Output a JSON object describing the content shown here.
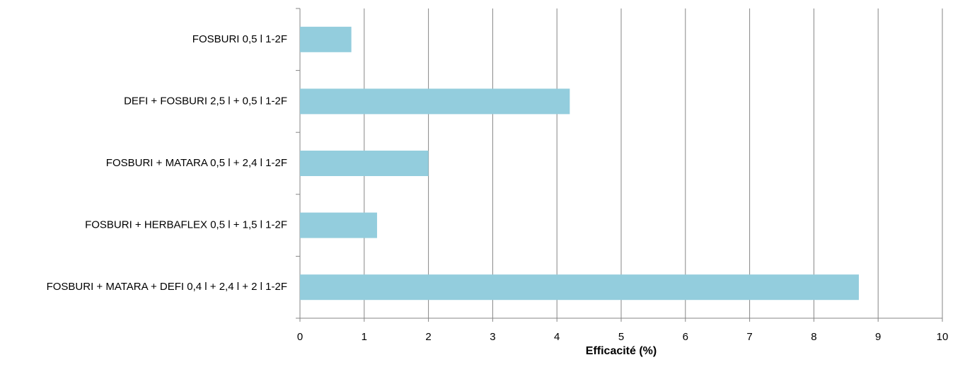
{
  "chart_data": {
    "type": "bar",
    "orientation": "horizontal",
    "x_label": "Efficacité (%)",
    "categories": [
      "FOSBURI 0,5 l 1-2F",
      "DEFI + FOSBURI 2,5 l + 0,5 l 1-2F",
      "FOSBURI + MATARA 0,5 l + 2,4 l 1-2F",
      "FOSBURI + HERBAFLEX 0,5 l + 1,5 l 1-2F",
      "FOSBURI + MATARA + DEFI 0,4 l + 2,4 l + 2 l 1-2F"
    ],
    "values": [
      0.8,
      4.2,
      2.0,
      1.2,
      8.7
    ],
    "color": "#93cddd",
    "xlim": [
      0,
      10
    ],
    "xticks": [
      0,
      1,
      2,
      3,
      4,
      5,
      6,
      7,
      8,
      9,
      10
    ],
    "grid": true
  }
}
